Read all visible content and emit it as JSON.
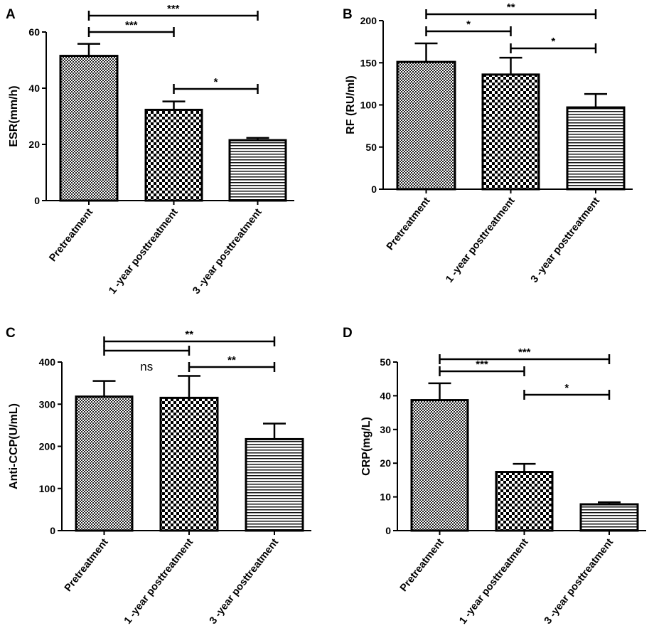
{
  "chart_data": [
    {
      "panel": "A",
      "type": "bar",
      "categories": [
        "Pretreatment",
        "1 -year posttreatment",
        "3 -year posttreatment"
      ],
      "values": [
        51.5,
        32.3,
        21.5
      ],
      "errors": [
        4.3,
        3.0,
        0.8
      ],
      "ylabel": "ESR(mm/h)",
      "xlabel": "",
      "ylim": [
        0,
        60
      ],
      "yticks": [
        0,
        20,
        40,
        60
      ],
      "significance": [
        {
          "from": 0,
          "to": 2,
          "label": "***"
        },
        {
          "from": 0,
          "to": 1,
          "label": "***"
        },
        {
          "from": 1,
          "to": 2,
          "label": "*"
        }
      ]
    },
    {
      "panel": "B",
      "type": "bar",
      "categories": [
        "Pretreatment",
        "1 -year posttreatment",
        "3 -year posttreatment"
      ],
      "values": [
        151,
        136,
        97
      ],
      "errors": [
        22,
        20,
        16
      ],
      "ylabel": "RF (RU/ml)",
      "xlabel": "",
      "ylim": [
        0,
        200
      ],
      "yticks": [
        0,
        50,
        100,
        150,
        200
      ],
      "significance": [
        {
          "from": 0,
          "to": 2,
          "label": "**"
        },
        {
          "from": 0,
          "to": 1,
          "label": "*"
        },
        {
          "from": 1,
          "to": 2,
          "label": "*"
        }
      ]
    },
    {
      "panel": "C",
      "type": "bar",
      "categories": [
        "Pretreatment",
        "1 -year posttreatment",
        "3 -year posttreatment"
      ],
      "values": [
        318,
        315,
        217
      ],
      "errors": [
        37,
        52,
        37
      ],
      "ylabel": "Anti-CCP(U/mL)",
      "xlabel": "",
      "ylim": [
        0,
        400
      ],
      "yticks": [
        0,
        100,
        200,
        300,
        400
      ],
      "significance": [
        {
          "from": 0,
          "to": 2,
          "label": "**"
        },
        {
          "from": 0,
          "to": 1,
          "label": "ns"
        },
        {
          "from": 1,
          "to": 2,
          "label": "**"
        }
      ]
    },
    {
      "panel": "D",
      "type": "bar",
      "categories": [
        "Pretreatment",
        "1 -year posttreatment",
        "3 -year posttreatment"
      ],
      "values": [
        38.7,
        17.4,
        7.8
      ],
      "errors": [
        5.0,
        2.4,
        0.6
      ],
      "ylabel": "CRP(mg/L)",
      "xlabel": "",
      "ylim": [
        0,
        50
      ],
      "yticks": [
        0,
        10,
        20,
        30,
        40,
        50
      ],
      "significance": [
        {
          "from": 0,
          "to": 2,
          "label": "***"
        },
        {
          "from": 0,
          "to": 1,
          "label": "***"
        },
        {
          "from": 1,
          "to": 2,
          "label": "*"
        }
      ]
    }
  ],
  "style": {
    "bar_fill_patterns": [
      "fine-dots",
      "checkerboard",
      "horizontal-lines"
    ],
    "bar_stroke_color": "#000000",
    "background_color": "#ffffff"
  }
}
